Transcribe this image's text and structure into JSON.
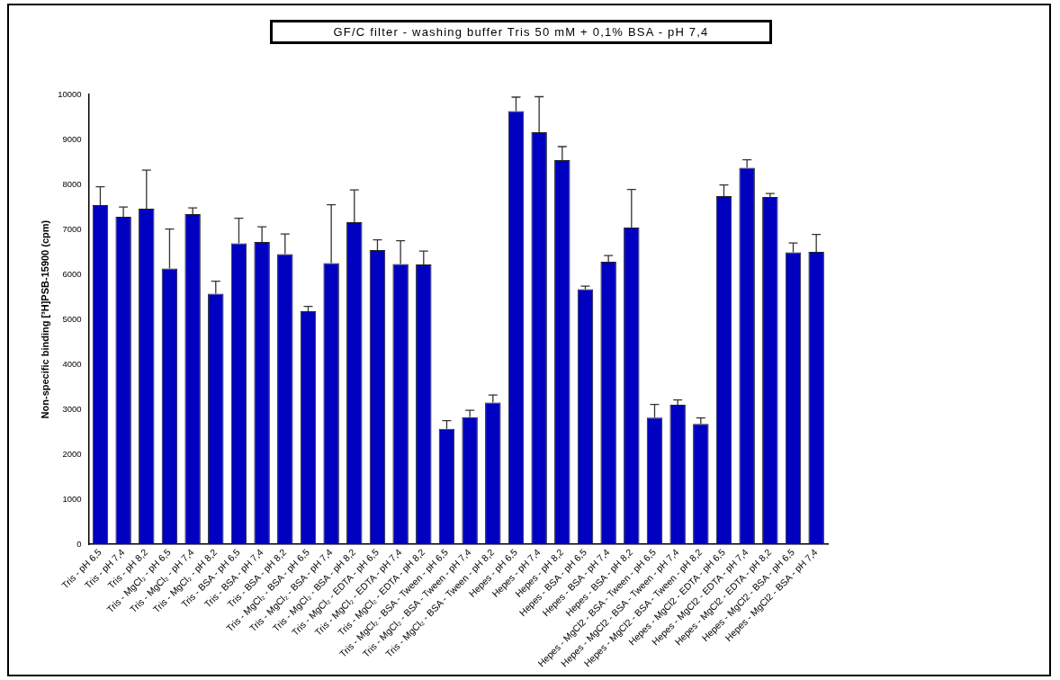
{
  "chart_data": {
    "type": "bar",
    "title": "GF/C filter - washing buffer Tris 50 mM + 0,1% BSA - pH 7,4",
    "ylabel": "Non-specific binding [³H]PSB-15900 (cpm)",
    "categories": [
      "Tris - pH 6,5",
      "Tris - pH 7,4",
      "Tris - pH 8,2",
      "Tris - MgCl₂ - pH 6,5",
      "Tris - MgCl₂ - pH 7,4",
      "Tris - MgCl₂ - pH 8,2",
      "Tris - BSA - pH 6,5",
      "Tris - BSA - pH 7,4",
      "Tris - BSA - pH 8,2",
      "Tris - MgCl₂ - BSA - pH 6,5",
      "Tris - MgCl₂ - BSA - pH 7,4",
      "Tris - MgCl₂ - BSA - pH 8,2",
      "Tris - MgCl₂ - EDTA - pH 6,5",
      "Tris - MgCl₂ - EDTA - pH 7,4",
      "Tris - MgCl₂ - EDTA - pH 8,2",
      "Tris - MgCl₂ - BSA - Tween - pH 6,5",
      "Tris - MgCl₂ - BSA - Tween - pH 7,4",
      "Tris - MgCl₂ - BSA - Tween - pH 8,2",
      "Hepes - pH 6,5",
      "Hepes - pH 7,4",
      "Hepes - pH 8,2",
      "Hepes - BSA - pH 6,5",
      "Hepes - BSA - pH 7,4",
      "Hepes - BSA - pH 8,2",
      "Hepes - MgCl2 - BSA - Tween - pH 6,5",
      "Hepes - MgCl2 - BSA - Tween - pH 7,4",
      "Hepes - MgCl2 - BSA - Tween - pH 8,2",
      "Hepes - MgCl2 - EDTA - pH 6,5",
      "Hepes - MgCl2 - EDTA - pH 7,4",
      "Hepes - MgCl2 - EDTA - pH 8,2",
      "Hepes - MgCl2 - BSA - pH 6,5",
      "Hepes - MgCl2 - BSA - pH 7,4"
    ],
    "values": [
      7540,
      7280,
      7460,
      6130,
      7340,
      5570,
      6690,
      6720,
      6450,
      5180,
      6250,
      7160,
      6540,
      6230,
      6220,
      2570,
      2830,
      3150,
      9630,
      9160,
      8540,
      5670,
      6280,
      7040,
      2820,
      3100,
      2680,
      7740,
      8370,
      7720,
      6490,
      6500
    ],
    "errors": [
      [
        7540,
        7950
      ],
      [
        7280,
        7500
      ],
      [
        7460,
        8320
      ],
      [
        6130,
        7010
      ],
      [
        7340,
        7480
      ],
      [
        5570,
        5850
      ],
      [
        6690,
        7250
      ],
      [
        6720,
        7060
      ],
      [
        6450,
        6900
      ],
      [
        5180,
        5290
      ],
      [
        6250,
        7550
      ],
      [
        7160,
        7880
      ],
      [
        6540,
        6770
      ],
      [
        6230,
        6750
      ],
      [
        6220,
        6520
      ],
      [
        2570,
        2750
      ],
      [
        2830,
        2980
      ],
      [
        3150,
        3320
      ],
      [
        9630,
        9940
      ],
      [
        9160,
        9950
      ],
      [
        8540,
        8840
      ],
      [
        5670,
        5740
      ],
      [
        6280,
        6420
      ],
      [
        7040,
        7890
      ],
      [
        2820,
        3110
      ],
      [
        3100,
        3210
      ],
      [
        2680,
        2810
      ],
      [
        7740,
        7990
      ],
      [
        8370,
        8550
      ],
      [
        7720,
        7800
      ],
      [
        6490,
        6700
      ],
      [
        6500,
        6890
      ]
    ],
    "color": "#0000c0",
    "ylim": [
      0,
      10000
    ],
    "yticks": [
      0,
      1000,
      2000,
      3000,
      4000,
      5000,
      6000,
      7000,
      8000,
      9000,
      10000
    ],
    "grid": false,
    "legend": false
  }
}
